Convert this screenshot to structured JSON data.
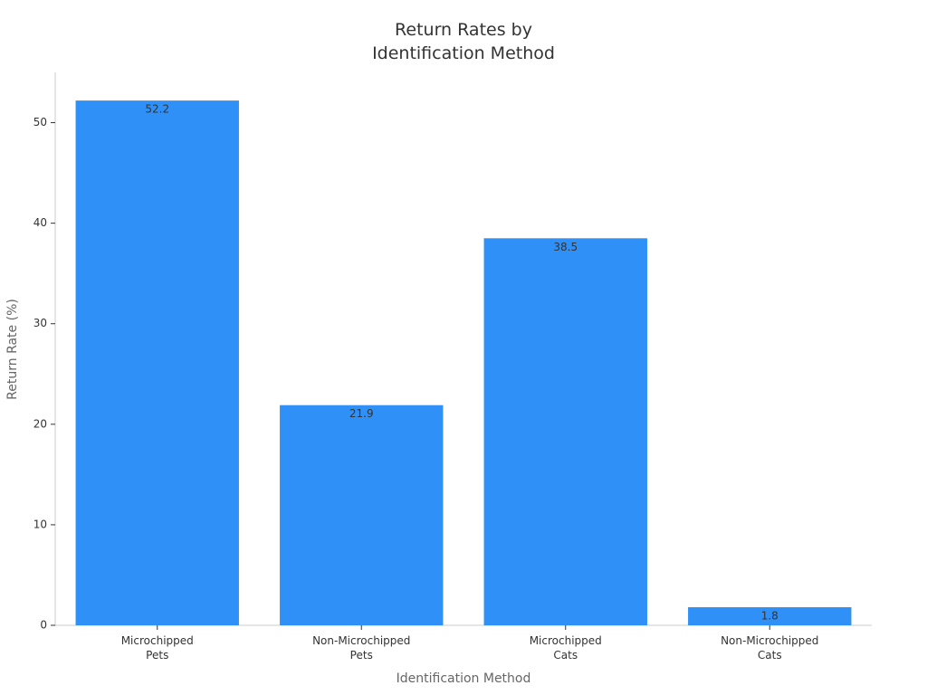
{
  "chart_data": {
    "type": "bar",
    "title": "Return Rates by\nIdentification Method",
    "x_label": "Identification Method",
    "y_label": "Return Rate (%)",
    "categories": [
      "Microchipped\nPets",
      "Non-Microchipped\nPets",
      "Microchipped\nCats",
      "Non-Microchipped\nCats"
    ],
    "values": [
      52.2,
      21.9,
      38.5,
      1.8
    ],
    "color": "#2f91f8",
    "ylim": [
      0,
      55
    ],
    "yticks": [
      0,
      10,
      20,
      30,
      40,
      50
    ],
    "grid": false
  }
}
